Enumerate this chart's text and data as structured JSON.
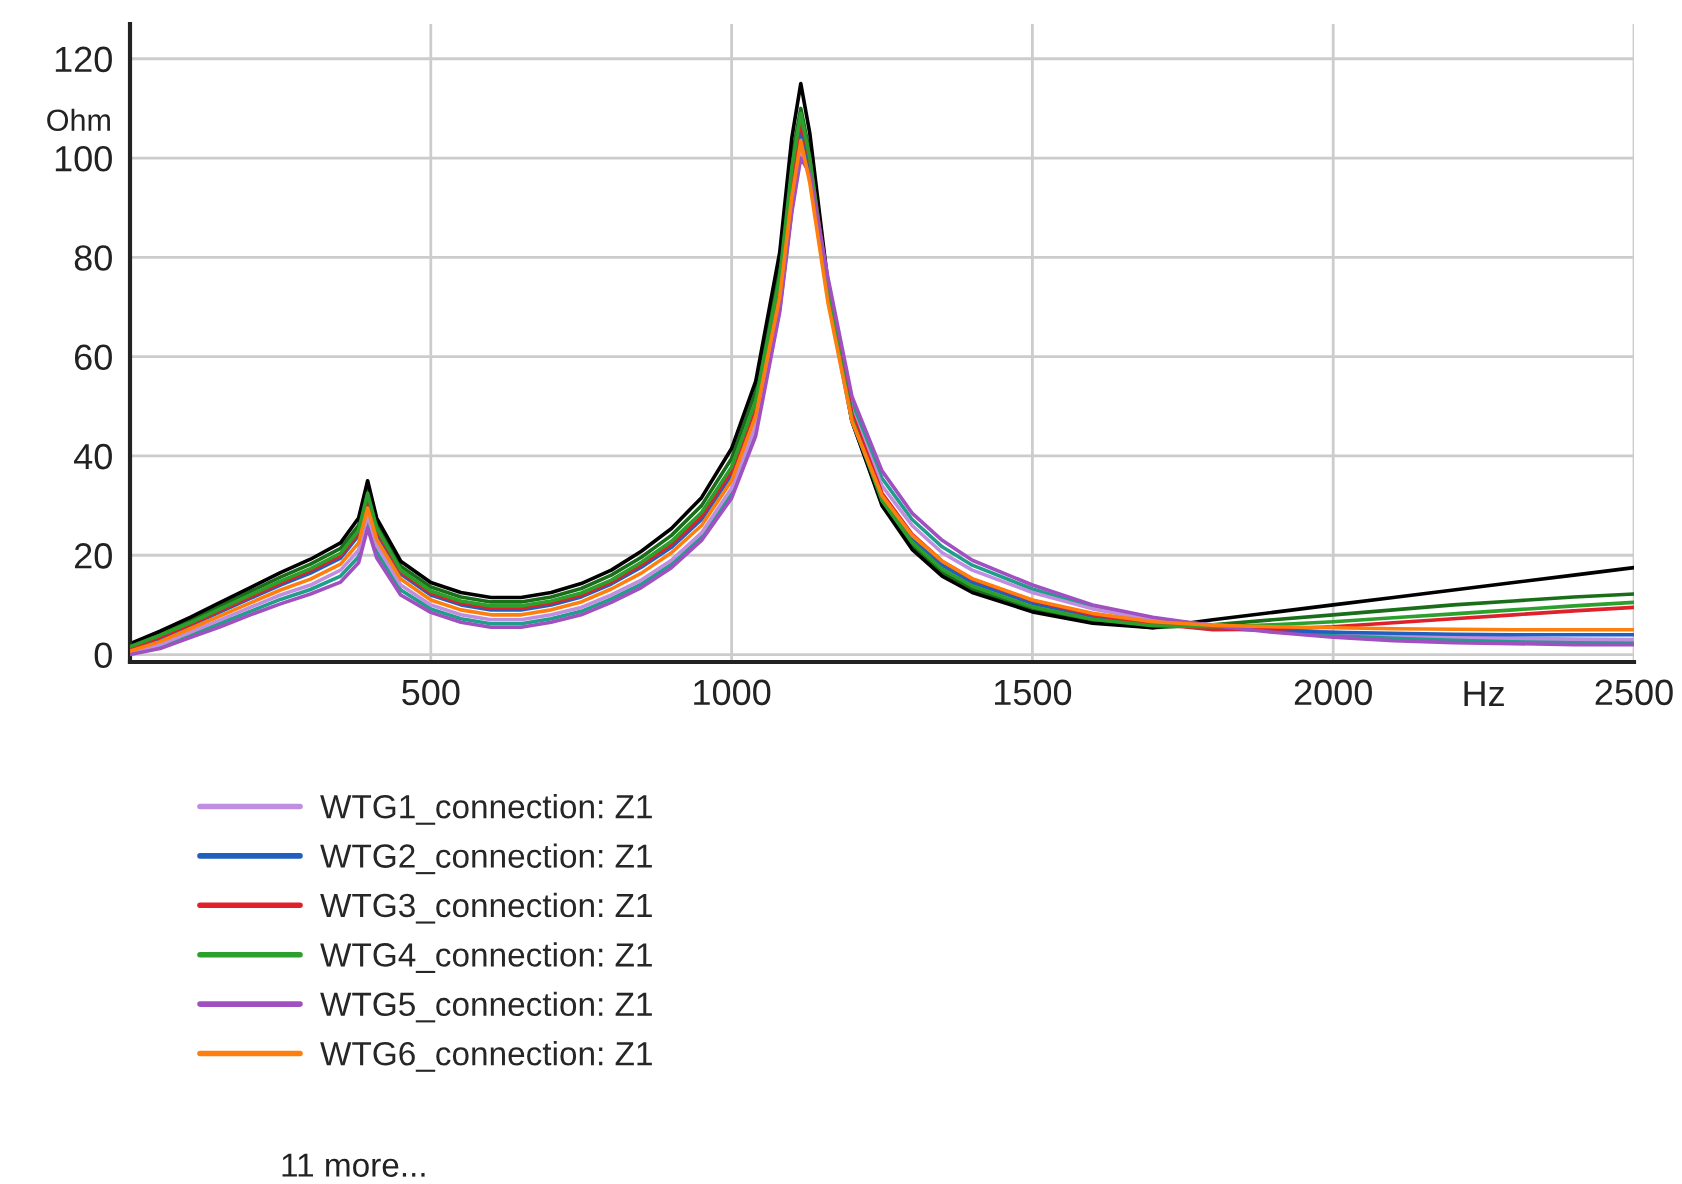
{
  "chart_data": {
    "type": "line",
    "xlabel": "Hz",
    "ylabel": "Ohm",
    "x": [
      0,
      50,
      100,
      150,
      200,
      250,
      300,
      350,
      380,
      395,
      410,
      450,
      500,
      550,
      600,
      650,
      700,
      750,
      800,
      850,
      900,
      950,
      1000,
      1040,
      1080,
      1100,
      1115,
      1130,
      1160,
      1200,
      1250,
      1300,
      1350,
      1400,
      1500,
      1600,
      1700,
      1800,
      1900,
      2000,
      2100,
      2200,
      2300,
      2400,
      2500
    ],
    "series": [
      {
        "name": "WTG1_connection: Z1",
        "color": "#c08ee0",
        "values": [
          0.4,
          2,
          4.5,
          7,
          9.5,
          12,
          14,
          17,
          21,
          28,
          22,
          14,
          10,
          8,
          7,
          7,
          8,
          9.5,
          12,
          15,
          19,
          24.5,
          33.5,
          46,
          70,
          90,
          102,
          96,
          73,
          49,
          34,
          26,
          20.5,
          17,
          12.5,
          9.2,
          7,
          6,
          5.2,
          4.5,
          4,
          3.6,
          3.3,
          3.1,
          3
        ]
      },
      {
        "name": "WTG2_connection: Z1",
        "color": "#1f5fbf",
        "values": [
          1,
          3,
          5.9,
          8.6,
          11.3,
          14,
          16.4,
          19.4,
          24,
          31,
          24.4,
          16.2,
          12,
          10,
          9,
          9,
          10,
          11.6,
          14.2,
          17.6,
          21.6,
          27.2,
          36.2,
          49,
          74,
          95,
          106,
          98,
          72,
          47,
          31.5,
          23.4,
          18,
          14.5,
          10.3,
          7.7,
          6.2,
          5.3,
          4.8,
          4.5,
          4.3,
          4.1,
          4,
          4,
          4
        ]
      },
      {
        "name": "WTG3_connection: Z1",
        "color": "#e0202a",
        "values": [
          1.3,
          3.5,
          6.1,
          8.9,
          11.6,
          14.4,
          16.9,
          19.9,
          24.5,
          32,
          25,
          16.6,
          12.4,
          10.4,
          9.4,
          9.4,
          10.4,
          12,
          14.6,
          18.1,
          22.2,
          27.9,
          37,
          50,
          75,
          96.5,
          107.5,
          99.5,
          74.5,
          48.5,
          32.5,
          24.2,
          18.8,
          15.2,
          10.9,
          8,
          6.2,
          5,
          5.1,
          5.6,
          6.4,
          7.2,
          8,
          8.8,
          9.5
        ]
      },
      {
        "name": "WTG4_connection: Z1",
        "color": "#2ca02c",
        "values": [
          1.6,
          3.9,
          6.4,
          9.2,
          12,
          14.8,
          17.3,
          20.4,
          25,
          32.5,
          25.5,
          17,
          12.8,
          10.8,
          9.8,
          9.8,
          10.8,
          12.4,
          15,
          18.6,
          22.8,
          28.6,
          37.8,
          51,
          76,
          98,
          109,
          100,
          73,
          47.5,
          31,
          22.6,
          17.2,
          13.8,
          9.6,
          7.1,
          5.8,
          5.6,
          6,
          6.6,
          7.4,
          8.2,
          9,
          9.8,
          10.5
        ]
      },
      {
        "name": "WTG5_connection: Z1",
        "color": "#a050c0",
        "values": [
          0,
          1.2,
          3.4,
          5.6,
          8,
          10.2,
          12.2,
          14.6,
          18.5,
          25.5,
          19.5,
          12,
          8.5,
          6.5,
          5.5,
          5.5,
          6.5,
          8,
          10.5,
          13.5,
          17.5,
          23,
          31.5,
          44,
          69,
          89,
          100,
          97,
          76,
          52,
          37,
          28.5,
          23,
          19,
          14,
          10,
          7.5,
          5.8,
          4.5,
          3.5,
          2.8,
          2.4,
          2.2,
          2,
          2
        ]
      },
      {
        "name": "WTG6_connection: Z1",
        "color": "#ff7f0e",
        "values": [
          0.7,
          2.6,
          5.2,
          7.8,
          10.4,
          13,
          15.2,
          18.2,
          22.5,
          29.5,
          23.2,
          15.2,
          11,
          9,
          8,
          8,
          9,
          10.6,
          13.2,
          16.4,
          20.5,
          26,
          35,
          48,
          72,
          92,
          103.5,
          95,
          71,
          47,
          32,
          24,
          18.8,
          15.3,
          11,
          8.3,
          6.6,
          5.9,
          5.6,
          5.4,
          5.2,
          5.1,
          5,
          5,
          5
        ]
      },
      {
        "color": "#000000",
        "values": [
          2.2,
          4.7,
          7.5,
          10.5,
          13.5,
          16.5,
          19.2,
          22.5,
          27.5,
          35,
          27.5,
          18.8,
          14.5,
          12.5,
          11.5,
          11.5,
          12.5,
          14.3,
          17,
          20.8,
          25.4,
          31.6,
          41.5,
          55,
          81,
          104,
          115,
          105,
          75,
          47,
          30,
          21.2,
          15.8,
          12.5,
          8.6,
          6.3,
          5.4,
          7,
          8.5,
          10,
          11.5,
          13,
          14.5,
          16,
          17.5
        ]
      },
      {
        "color": "#1a6e1a",
        "values": [
          1.9,
          4.3,
          6.9,
          9.8,
          12.7,
          15.6,
          18.2,
          21.4,
          26,
          33.5,
          26.4,
          17.8,
          13.6,
          11.6,
          10.6,
          10.6,
          11.6,
          13.3,
          16,
          19.6,
          24,
          30,
          39.5,
          53,
          78,
          100,
          110,
          101,
          73.5,
          47,
          30.5,
          22,
          16.5,
          13.2,
          9.1,
          6.7,
          5.4,
          6,
          7,
          8,
          9,
          10,
          10.8,
          11.6,
          12.2
        ]
      },
      {
        "color": "#1f9e89",
        "values": [
          0.2,
          1.6,
          3.9,
          6.3,
          8.7,
          11.1,
          13.1,
          15.8,
          19.7,
          26.7,
          20.7,
          13,
          9.2,
          7.2,
          6.2,
          6.2,
          7.2,
          8.7,
          11.2,
          14.2,
          18.2,
          23.7,
          32.5,
          45,
          69.5,
          89.5,
          101,
          96.5,
          74.5,
          50.5,
          35.5,
          27.2,
          21.7,
          18,
          13.2,
          9.6,
          7.2,
          5.9,
          4.8,
          4,
          3.4,
          3,
          2.7,
          2.5,
          2.5
        ]
      }
    ],
    "xlim": [
      0,
      2500
    ],
    "xticks": [
      500,
      1000,
      1500,
      2000,
      2500
    ],
    "ylim": [
      -1.5,
      127
    ],
    "yticks": [
      0,
      20,
      40,
      60,
      80,
      100,
      120
    ],
    "grid": true,
    "legend": "bottom",
    "marker": "none",
    "line_style": "solid",
    "annotations": [
      "11 more..."
    ]
  }
}
